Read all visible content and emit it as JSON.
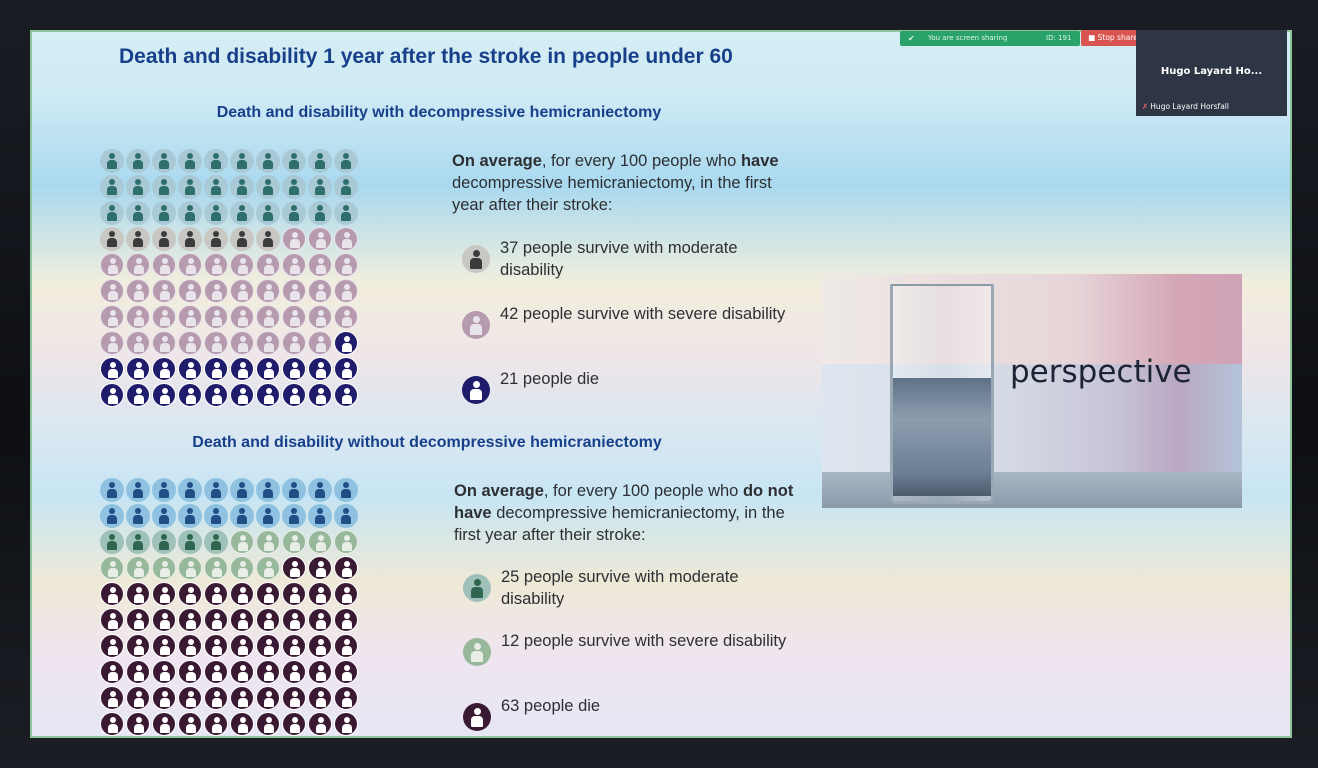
{
  "slide": {
    "title": "Death and disability 1 year after the stroke in people under 60",
    "with": {
      "subtitle": "Death and disability with decompressive hemicraniectomy",
      "intro_bold": "On average",
      "intro_a": ", for every 100 people who ",
      "intro_have": "have",
      "intro_b": " decompressive hemicraniectomy, in the first year after their stroke:",
      "moderate_label": "37 people survive with moderate disability",
      "severe_label": "42 people survive with severe disability",
      "died_label": "21 people die",
      "counts": {
        "good": 30,
        "moderate": 7,
        "severe": 42,
        "died": 21
      }
    },
    "without": {
      "subtitle": "Death and disability without decompressive hemicraniectomy",
      "intro_bold": "On average",
      "intro_a": ", for every 100 people who ",
      "intro_have": "do not have",
      "intro_b": " decompressive hemicraniectomy, in the first year after their stroke:",
      "moderate_label": "25 people survive with moderate disability",
      "severe_label": "12 people survive with severe disability",
      "died_label": "63 people die",
      "counts": {
        "good": 20,
        "moderate": 5,
        "severe": 12,
        "died": 63
      }
    },
    "image_word": "perspective"
  },
  "colors": {
    "good_fill": "#2f6f6b",
    "good_bg": "#a9c9d6",
    "moderate_fill": "#3b3b3b",
    "moderate_bg": "#c9c7c3",
    "severe_fill": "#e8e4ea",
    "severe_bg": "#b69aae",
    "died_fill": "#ffffff",
    "died_bg": "#1f1c6b",
    "w_good_fill": "#1f4f85",
    "w_good_bg": "#8fc2e1",
    "w_mod_fill": "#2f6650",
    "w_mod_bg": "#9fc1b9",
    "w_sev_fill": "#e8eee6",
    "w_sev_bg": "#97b89b",
    "w_died_fill": "#ffffff",
    "w_died_bg": "#3a1a33"
  },
  "meeting": {
    "share_msg": "You are screen sharing",
    "share_ids": "ID: 191",
    "stop_label": "Stop share",
    "participant_name": "Hugo Layard Ho...",
    "participant_caption": "Hugo Layard Horsfall"
  }
}
